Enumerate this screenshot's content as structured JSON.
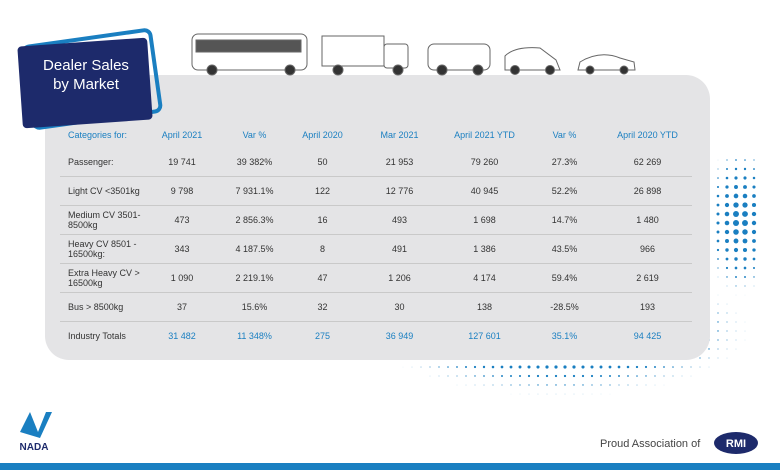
{
  "title": {
    "line1": "Dealer Sales",
    "line2": "by Market"
  },
  "table": {
    "header": [
      "Categories for:",
      "April 2021",
      "Var %",
      "April 2020",
      "Mar 2021",
      "April 2021 YTD",
      "Var %",
      "April 2020 YTD"
    ],
    "rows": [
      [
        "Passenger:",
        "19 741",
        "39 382%",
        "50",
        "21 953",
        "79 260",
        "27.3%",
        "62 269"
      ],
      [
        "Light CV <3501kg",
        "9 798",
        "7 931.1%",
        "122",
        "12 776",
        "40 945",
        "52.2%",
        "26 898"
      ],
      [
        "Medium CV 3501-8500kg",
        "473",
        "2 856.3%",
        "16",
        "493",
        "1 698",
        "14.7%",
        "1 480"
      ],
      [
        "Heavy CV 8501 - 16500kg:",
        "343",
        "4 187.5%",
        "8",
        "491",
        "1 386",
        "43.5%",
        "966"
      ],
      [
        "Extra Heavy CV > 16500kg",
        "1 090",
        "2 219.1%",
        "47",
        "1 206",
        "4 174",
        "59.4%",
        "2 619"
      ],
      [
        "Bus > 8500kg",
        "37",
        "15.6%",
        "32",
        "30",
        "138",
        "-28.5%",
        "193"
      ],
      [
        "Industry Totals",
        "31 482",
        "11 348%",
        "275",
        "36 949",
        "127 601",
        "35.1%",
        "94 425"
      ]
    ]
  },
  "footer": {
    "nada": "NADA",
    "tagline": "Proud Association of",
    "rmi": "RMI"
  }
}
